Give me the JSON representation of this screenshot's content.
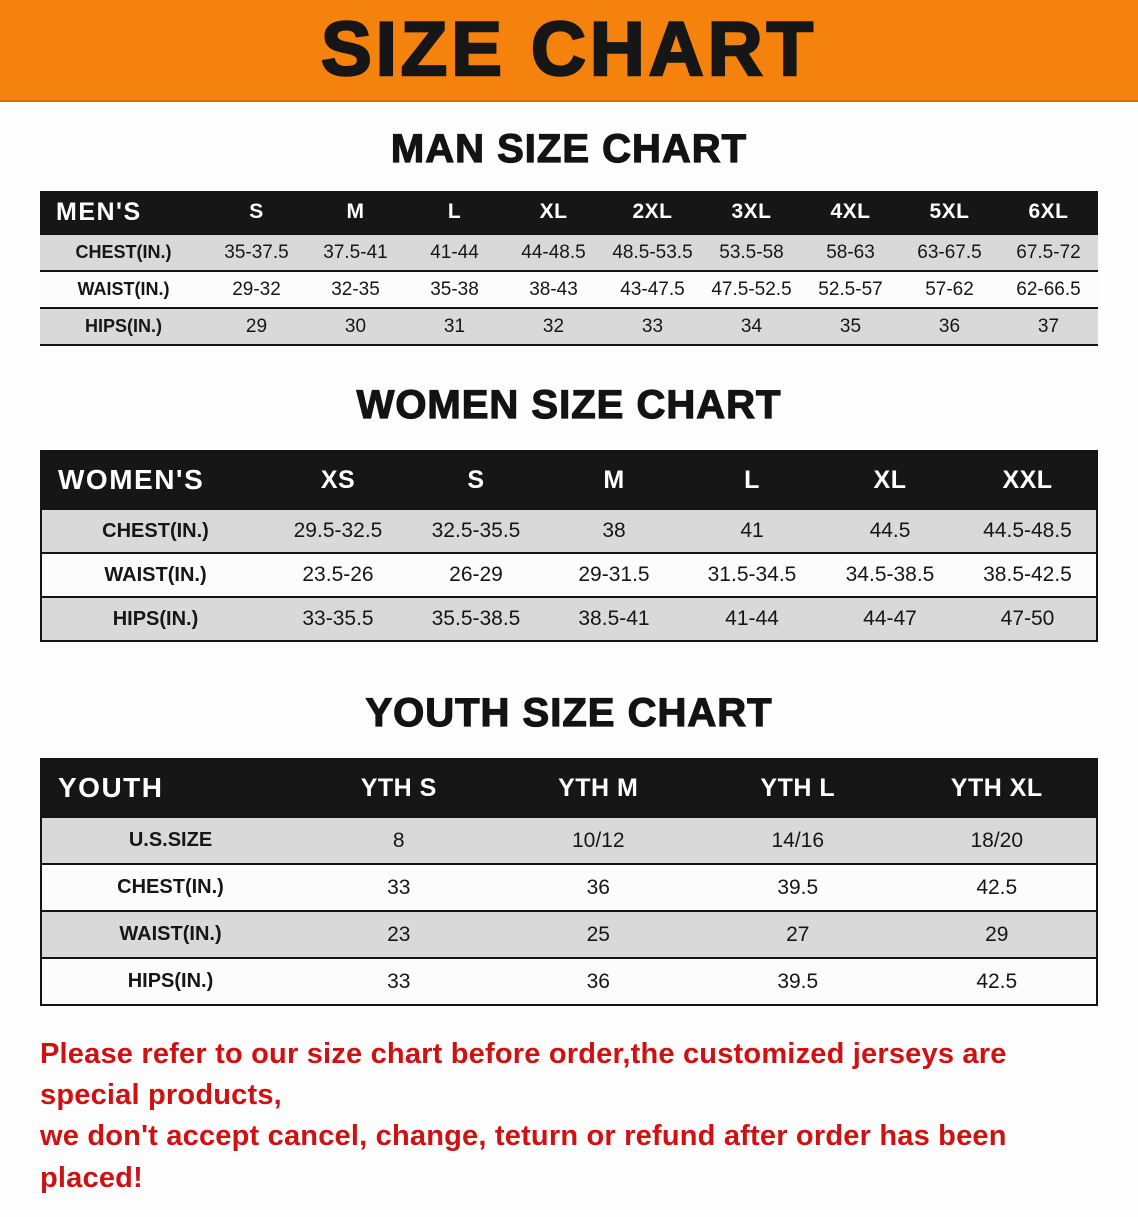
{
  "banner": {
    "title": "SIZE CHART"
  },
  "colors": {
    "banner_orange": "#f5820d",
    "table_header_black": "#161616",
    "stripe_gray": "#d9d9d9",
    "notice_red": "#d01111"
  },
  "chart_data": [
    {
      "type": "table",
      "title": "MAN SIZE CHART",
      "corner": "MEN'S",
      "columns": [
        "S",
        "M",
        "L",
        "XL",
        "2XL",
        "3XL",
        "4XL",
        "5XL",
        "6XL"
      ],
      "rows": [
        {
          "label": "CHEST(IN.)",
          "values": [
            "35-37.5",
            "37.5-41",
            "41-44",
            "44-48.5",
            "48.5-53.5",
            "53.5-58",
            "58-63",
            "63-67.5",
            "67.5-72"
          ]
        },
        {
          "label": "WAIST(IN.)",
          "values": [
            "29-32",
            "32-35",
            "35-38",
            "38-43",
            "43-47.5",
            "47.5-52.5",
            "52.5-57",
            "57-62",
            "62-66.5"
          ]
        },
        {
          "label": "HIPS(IN.)",
          "values": [
            "29",
            "30",
            "31",
            "32",
            "33",
            "34",
            "35",
            "36",
            "37"
          ]
        }
      ]
    },
    {
      "type": "table",
      "title": "WOMEN SIZE CHART",
      "corner": "WOMEN'S",
      "columns": [
        "XS",
        "S",
        "M",
        "L",
        "XL",
        "XXL"
      ],
      "rows": [
        {
          "label": "CHEST(IN.)",
          "values": [
            "29.5-32.5",
            "32.5-35.5",
            "38",
            "41",
            "44.5",
            "44.5-48.5"
          ]
        },
        {
          "label": "WAIST(IN.)",
          "values": [
            "23.5-26",
            "26-29",
            "29-31.5",
            "31.5-34.5",
            "34.5-38.5",
            "38.5-42.5"
          ]
        },
        {
          "label": "HIPS(IN.)",
          "values": [
            "33-35.5",
            "35.5-38.5",
            "38.5-41",
            "41-44",
            "44-47",
            "47-50"
          ]
        }
      ]
    },
    {
      "type": "table",
      "title": "YOUTH SIZE CHART",
      "corner": "YOUTH",
      "columns": [
        "YTH S",
        "YTH M",
        "YTH L",
        "YTH XL"
      ],
      "rows": [
        {
          "label": "U.S.SIZE",
          "values": [
            "8",
            "10/12",
            "14/16",
            "18/20"
          ]
        },
        {
          "label": "CHEST(IN.)",
          "values": [
            "33",
            "36",
            "39.5",
            "42.5"
          ]
        },
        {
          "label": "WAIST(IN.)",
          "values": [
            "23",
            "25",
            "27",
            "29"
          ]
        },
        {
          "label": "HIPS(IN.)",
          "values": [
            "33",
            "36",
            "39.5",
            "42.5"
          ]
        }
      ]
    }
  ],
  "footer": {
    "line1": "Please refer to our size chart before order,the customized jerseys are special products,",
    "line2": "we don't accept cancel, change, teturn or refund after order has been placed!"
  }
}
